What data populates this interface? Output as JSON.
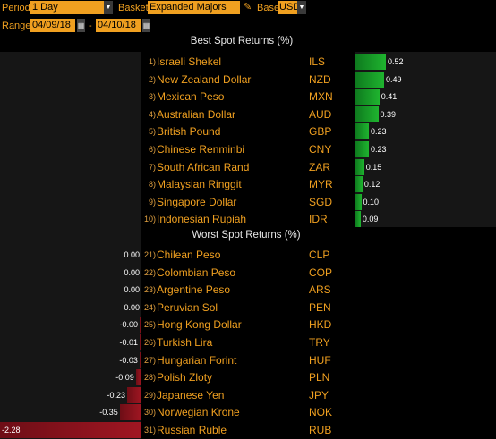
{
  "toolbar": {
    "period_label": "Period",
    "period_value": "1 Day",
    "basket_label": "Basket",
    "basket_value": "Expanded Majors",
    "base_label": "Base",
    "base_value": "USD",
    "range_label": "Range",
    "range_start": "04/09/18",
    "range_sep": "-",
    "range_end": "04/10/18",
    "edit_icon": "pencil-icon",
    "dropdown_icon": "chevron-down-icon",
    "calendar_icon": "calendar-icon"
  },
  "best": {
    "title": "Best Spot Returns (%)",
    "rows": [
      {
        "rank": "1)",
        "name": "Israeli Shekel",
        "code": "ILS",
        "value": "0.52",
        "num": 0.52
      },
      {
        "rank": "2)",
        "name": "New Zealand Dollar",
        "code": "NZD",
        "value": "0.49",
        "num": 0.49
      },
      {
        "rank": "3)",
        "name": "Mexican Peso",
        "code": "MXN",
        "value": "0.41",
        "num": 0.41
      },
      {
        "rank": "4)",
        "name": "Australian Dollar",
        "code": "AUD",
        "value": "0.39",
        "num": 0.39
      },
      {
        "rank": "5)",
        "name": "British Pound",
        "code": "GBP",
        "value": "0.23",
        "num": 0.23
      },
      {
        "rank": "6)",
        "name": "Chinese Renminbi",
        "code": "CNY",
        "value": "0.23",
        "num": 0.23
      },
      {
        "rank": "7)",
        "name": "South African Rand",
        "code": "ZAR",
        "value": "0.15",
        "num": 0.15
      },
      {
        "rank": "8)",
        "name": "Malaysian Ringgit",
        "code": "MYR",
        "value": "0.12",
        "num": 0.12
      },
      {
        "rank": "9)",
        "name": "Singapore Dollar",
        "code": "SGD",
        "value": "0.10",
        "num": 0.1
      },
      {
        "rank": "10)",
        "name": "Indonesian Rupiah",
        "code": "IDR",
        "value": "0.09",
        "num": 0.09
      }
    ]
  },
  "worst": {
    "title": "Worst Spot Returns (%)",
    "rows": [
      {
        "rank": "21)",
        "name": "Chilean Peso",
        "code": "CLP",
        "value": "0.00",
        "num": 0.0
      },
      {
        "rank": "22)",
        "name": "Colombian Peso",
        "code": "COP",
        "value": "0.00",
        "num": 0.0
      },
      {
        "rank": "23)",
        "name": "Argentine Peso",
        "code": "ARS",
        "value": "0.00",
        "num": 0.0
      },
      {
        "rank": "24)",
        "name": "Peruvian Sol",
        "code": "PEN",
        "value": "0.00",
        "num": 0.0
      },
      {
        "rank": "25)",
        "name": "Hong Kong Dollar",
        "code": "HKD",
        "value": "-0.00",
        "num": -0.0
      },
      {
        "rank": "26)",
        "name": "Turkish Lira",
        "code": "TRY",
        "value": "-0.01",
        "num": -0.01
      },
      {
        "rank": "27)",
        "name": "Hungarian Forint",
        "code": "HUF",
        "value": "-0.03",
        "num": -0.03
      },
      {
        "rank": "28)",
        "name": "Polish Zloty",
        "code": "PLN",
        "value": "-0.09",
        "num": -0.09
      },
      {
        "rank": "29)",
        "name": "Japanese Yen",
        "code": "JPY",
        "value": "-0.23",
        "num": -0.23
      },
      {
        "rank": "30)",
        "name": "Norwegian Krone",
        "code": "NOK",
        "value": "-0.35",
        "num": -0.35
      },
      {
        "rank": "31)",
        "name": "Russian Ruble",
        "code": "RUB",
        "value": "-2.28",
        "num": -2.28
      }
    ]
  },
  "colors": {
    "accent": "#f0a020",
    "positive": "#1fb42f",
    "negative": "#a01622",
    "background": "#000000"
  }
}
